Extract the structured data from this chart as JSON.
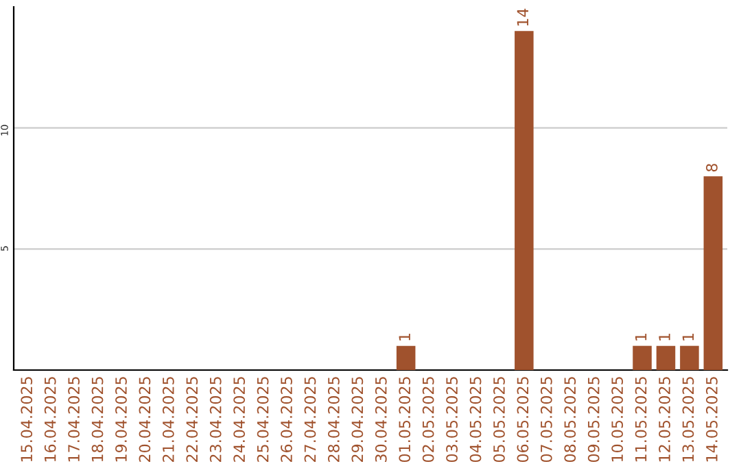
{
  "chart_data": {
    "type": "bar",
    "categories": [
      "15.04.2025",
      "16.04.2025",
      "17.04.2025",
      "18.04.2025",
      "19.04.2025",
      "20.04.2025",
      "21.04.2025",
      "22.04.2025",
      "23.04.2025",
      "24.04.2025",
      "25.04.2025",
      "26.04.2025",
      "27.04.2025",
      "28.04.2025",
      "29.04.2025",
      "30.04.2025",
      "01.05.2025",
      "02.05.2025",
      "03.05.2025",
      "04.05.2025",
      "05.05.2025",
      "06.05.2025",
      "07.05.2025",
      "08.05.2025",
      "09.05.2025",
      "10.05.2025",
      "11.05.2025",
      "12.05.2025",
      "13.05.2025",
      "14.05.2025"
    ],
    "values": [
      0,
      0,
      0,
      0,
      0,
      0,
      0,
      0,
      0,
      0,
      0,
      0,
      0,
      0,
      0,
      0,
      1,
      0,
      0,
      0,
      0,
      14,
      0,
      0,
      0,
      0,
      1,
      1,
      1,
      8
    ],
    "value_labels": [
      null,
      null,
      null,
      null,
      null,
      null,
      null,
      null,
      null,
      null,
      null,
      null,
      null,
      null,
      null,
      null,
      "1",
      null,
      null,
      null,
      null,
      "14",
      null,
      null,
      null,
      null,
      "1",
      "1",
      "1",
      "8"
    ],
    "color": "#a0522d",
    "ylim": [
      0,
      15
    ],
    "yticks": [
      5,
      10
    ],
    "grid": "y",
    "legend": false
  }
}
